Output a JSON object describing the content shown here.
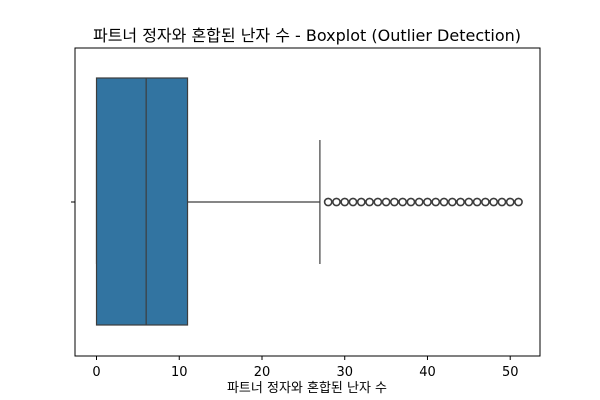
{
  "chart_data": {
    "type": "boxplot",
    "orientation": "horizontal",
    "title": "파트너 정자와 혼합된 난자 수 - Boxplot (Outlier Detection)",
    "xlabel": "파트너 정자와 혼합된 난자 수",
    "ylabel": "",
    "xlim": [
      -2.6,
      53.6
    ],
    "x_ticks": [
      0,
      10,
      20,
      30,
      40,
      50
    ],
    "grid": false,
    "box": {
      "whisker_low": 0,
      "q1": 0,
      "median": 6,
      "q3": 11,
      "whisker_high": 27
    },
    "outliers": [
      28,
      29,
      30,
      31,
      32,
      33,
      34,
      35,
      36,
      37,
      38,
      39,
      40,
      41,
      42,
      43,
      44,
      45,
      46,
      47,
      48,
      49,
      50,
      51
    ],
    "box_color": "#3274a1",
    "line_color": "#3d3d3d"
  }
}
